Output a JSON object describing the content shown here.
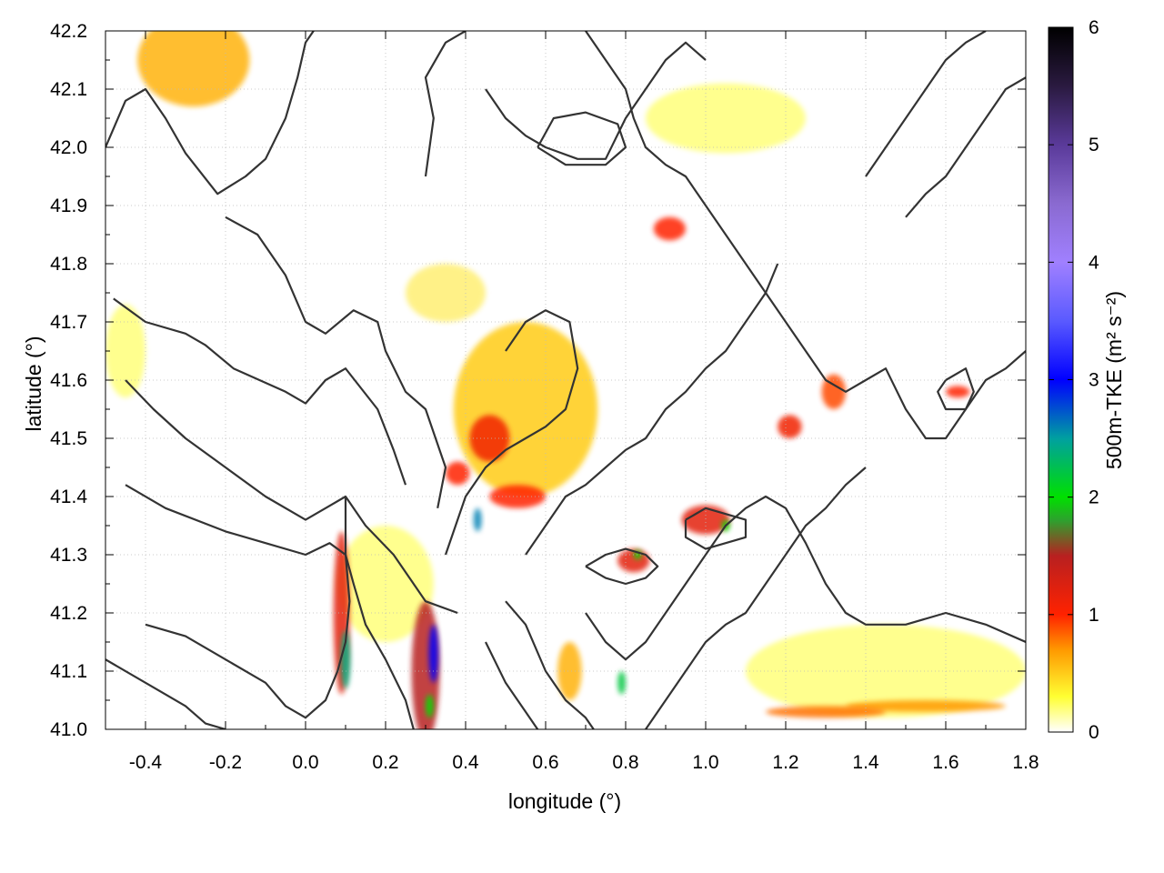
{
  "chart_data": {
    "type": "heatmap",
    "title": "",
    "xlabel": "longitude (°)",
    "ylabel": "latitude (°)",
    "colorbar_label": "500m-TKE (m² s⁻²)",
    "xlim": [
      -0.5,
      1.8
    ],
    "ylim": [
      41.0,
      42.2
    ],
    "clim": [
      0,
      6
    ],
    "x_ticks": [
      -0.4,
      -0.2,
      0.0,
      0.2,
      0.4,
      0.6,
      0.8,
      1.0,
      1.2,
      1.4,
      1.6,
      1.8
    ],
    "x_tick_labels": [
      "-0.4",
      "-0.2",
      "0.0",
      "0.2",
      "0.4",
      "0.6",
      "0.8",
      "1.0",
      "1.2",
      "1.4",
      "1.6",
      "1.8"
    ],
    "y_ticks": [
      41.0,
      41.1,
      41.2,
      41.3,
      41.4,
      41.5,
      41.6,
      41.7,
      41.8,
      41.9,
      42.0,
      42.1,
      42.2
    ],
    "y_tick_labels": [
      "41.0",
      "41.1",
      "41.2",
      "41.3",
      "41.4",
      "41.5",
      "41.6",
      "41.7",
      "41.8",
      "41.9",
      "42.0",
      "42.1",
      "42.2"
    ],
    "colorbar_ticks": [
      0,
      1,
      2,
      3,
      4,
      5,
      6
    ],
    "colorbar_tick_labels": [
      "0",
      "1",
      "2",
      "3",
      "4",
      "5",
      "6"
    ],
    "colormap": [
      {
        "v": 0.0,
        "color": "#ffffff"
      },
      {
        "v": 0.3,
        "color": "#ffff33"
      },
      {
        "v": 0.7,
        "color": "#ff9900"
      },
      {
        "v": 1.0,
        "color": "#ff2200"
      },
      {
        "v": 1.5,
        "color": "#b82020"
      },
      {
        "v": 1.8,
        "color": "#2ea02e"
      },
      {
        "v": 2.0,
        "color": "#00e000"
      },
      {
        "v": 2.5,
        "color": "#00a0a0"
      },
      {
        "v": 3.0,
        "color": "#0000ff"
      },
      {
        "v": 3.5,
        "color": "#5a5aff"
      },
      {
        "v": 4.0,
        "color": "#a080ff"
      },
      {
        "v": 4.5,
        "color": "#8a6ad0"
      },
      {
        "v": 5.0,
        "color": "#5a3a9a"
      },
      {
        "v": 5.5,
        "color": "#2a1a40"
      },
      {
        "v": 6.0,
        "color": "#000000"
      }
    ],
    "grid": true,
    "tke_features": [
      {
        "lon": -0.28,
        "lat": 42.15,
        "value": 0.6,
        "rlon": 0.14,
        "rlat": 0.08
      },
      {
        "lon": 0.09,
        "lat": 41.2,
        "value": 1.2,
        "rlon": 0.02,
        "rlat": 0.14
      },
      {
        "lon": 0.1,
        "lat": 41.12,
        "value": 2.4,
        "rlon": 0.012,
        "rlat": 0.05
      },
      {
        "lon": 0.3,
        "lat": 41.1,
        "value": 1.5,
        "rlon": 0.035,
        "rlat": 0.12
      },
      {
        "lon": 0.32,
        "lat": 41.13,
        "value": 3.0,
        "rlon": 0.012,
        "rlat": 0.05
      },
      {
        "lon": 0.31,
        "lat": 41.04,
        "value": 2.0,
        "rlon": 0.01,
        "rlat": 0.02
      },
      {
        "lon": 0.43,
        "lat": 41.36,
        "value": 2.6,
        "rlon": 0.01,
        "rlat": 0.02
      },
      {
        "lon": 0.46,
        "lat": 41.5,
        "value": 1.1,
        "rlon": 0.05,
        "rlat": 0.04
      },
      {
        "lon": 0.53,
        "lat": 41.4,
        "value": 1.0,
        "rlon": 0.07,
        "rlat": 0.02
      },
      {
        "lon": 0.38,
        "lat": 41.44,
        "value": 1.0,
        "rlon": 0.03,
        "rlat": 0.02
      },
      {
        "lon": 0.55,
        "lat": 41.55,
        "value": 0.5,
        "rlon": 0.18,
        "rlat": 0.15
      },
      {
        "lon": 0.82,
        "lat": 41.29,
        "value": 1.2,
        "rlon": 0.04,
        "rlat": 0.02
      },
      {
        "lon": 0.83,
        "lat": 41.3,
        "value": 2.0,
        "rlon": 0.01,
        "rlat": 0.008
      },
      {
        "lon": 1.0,
        "lat": 41.36,
        "value": 1.2,
        "rlon": 0.06,
        "rlat": 0.025
      },
      {
        "lon": 1.05,
        "lat": 41.35,
        "value": 2.0,
        "rlon": 0.01,
        "rlat": 0.01
      },
      {
        "lon": 0.79,
        "lat": 41.08,
        "value": 2.2,
        "rlon": 0.01,
        "rlat": 0.02
      },
      {
        "lon": 0.91,
        "lat": 41.86,
        "value": 1.0,
        "rlon": 0.04,
        "rlat": 0.02
      },
      {
        "lon": 1.21,
        "lat": 41.52,
        "value": 1.1,
        "rlon": 0.03,
        "rlat": 0.02
      },
      {
        "lon": 1.32,
        "lat": 41.58,
        "value": 0.9,
        "rlon": 0.03,
        "rlat": 0.03
      },
      {
        "lon": 1.63,
        "lat": 41.58,
        "value": 1.0,
        "rlon": 0.03,
        "rlat": 0.01
      },
      {
        "lon": 1.3,
        "lat": 41.03,
        "value": 0.8,
        "rlon": 0.15,
        "rlat": 0.01
      },
      {
        "lon": 1.55,
        "lat": 41.04,
        "value": 0.7,
        "rlon": 0.2,
        "rlat": 0.01
      },
      {
        "lon": 1.45,
        "lat": 41.1,
        "value": 0.3,
        "rlon": 0.35,
        "rlat": 0.08
      },
      {
        "lon": 0.66,
        "lat": 41.1,
        "value": 0.6,
        "rlon": 0.03,
        "rlat": 0.05
      },
      {
        "lon": 0.35,
        "lat": 41.75,
        "value": 0.4,
        "rlon": 0.1,
        "rlat": 0.05
      },
      {
        "lon": 0.2,
        "lat": 41.25,
        "value": 0.3,
        "rlon": 0.12,
        "rlat": 0.1
      },
      {
        "lon": -0.45,
        "lat": 41.65,
        "value": 0.3,
        "rlon": 0.05,
        "rlat": 0.08
      },
      {
        "lon": 1.05,
        "lat": 42.05,
        "value": 0.3,
        "rlon": 0.2,
        "rlat": 0.06
      }
    ],
    "contours": [
      [
        [
          -0.5,
          42.0
        ],
        [
          -0.45,
          42.08
        ],
        [
          -0.4,
          42.1
        ],
        [
          -0.35,
          42.05
        ],
        [
          -0.3,
          41.99
        ],
        [
          -0.22,
          41.92
        ],
        [
          -0.15,
          41.95
        ],
        [
          -0.1,
          41.98
        ],
        [
          -0.05,
          42.05
        ],
        [
          -0.02,
          42.12
        ],
        [
          0.0,
          42.18
        ],
        [
          0.02,
          42.2
        ]
      ],
      [
        [
          -0.2,
          41.88
        ],
        [
          -0.12,
          41.85
        ],
        [
          -0.05,
          41.78
        ],
        [
          0.0,
          41.7
        ],
        [
          0.05,
          41.68
        ],
        [
          0.12,
          41.72
        ],
        [
          0.18,
          41.7
        ],
        [
          0.2,
          41.65
        ],
        [
          0.25,
          41.58
        ],
        [
          0.3,
          41.55
        ],
        [
          0.35,
          41.45
        ],
        [
          0.33,
          41.38
        ]
      ],
      [
        [
          -0.48,
          41.74
        ],
        [
          -0.4,
          41.7
        ],
        [
          -0.3,
          41.68
        ],
        [
          -0.25,
          41.66
        ],
        [
          -0.18,
          41.62
        ],
        [
          -0.05,
          41.58
        ],
        [
          0.0,
          41.56
        ],
        [
          0.05,
          41.6
        ],
        [
          0.1,
          41.62
        ],
        [
          0.18,
          41.55
        ],
        [
          0.22,
          41.48
        ],
        [
          0.25,
          41.42
        ]
      ],
      [
        [
          -0.45,
          41.6
        ],
        [
          -0.38,
          41.55
        ],
        [
          -0.3,
          41.5
        ],
        [
          -0.2,
          41.45
        ],
        [
          -0.1,
          41.4
        ],
        [
          0.0,
          41.36
        ],
        [
          0.05,
          41.38
        ],
        [
          0.1,
          41.4
        ],
        [
          0.15,
          41.35
        ],
        [
          0.22,
          41.3
        ],
        [
          0.3,
          41.22
        ],
        [
          0.38,
          41.2
        ]
      ],
      [
        [
          -0.45,
          41.42
        ],
        [
          -0.35,
          41.38
        ],
        [
          -0.2,
          41.34
        ],
        [
          -0.1,
          41.32
        ],
        [
          0.0,
          41.3
        ],
        [
          0.06,
          41.32
        ],
        [
          0.1,
          41.3
        ],
        [
          0.12,
          41.25
        ],
        [
          0.15,
          41.18
        ],
        [
          0.2,
          41.12
        ],
        [
          0.25,
          41.05
        ],
        [
          0.27,
          41.0
        ]
      ],
      [
        [
          -0.4,
          41.18
        ],
        [
          -0.3,
          41.16
        ],
        [
          -0.2,
          41.12
        ],
        [
          -0.1,
          41.08
        ],
        [
          -0.05,
          41.04
        ],
        [
          0.0,
          41.02
        ],
        [
          0.05,
          41.05
        ],
        [
          0.08,
          41.1
        ],
        [
          0.1,
          41.15
        ],
        [
          0.11,
          41.22
        ],
        [
          0.1,
          41.3
        ],
        [
          0.1,
          41.4
        ]
      ],
      [
        [
          -0.5,
          41.12
        ],
        [
          -0.4,
          41.08
        ],
        [
          -0.3,
          41.04
        ],
        [
          -0.25,
          41.01
        ],
        [
          -0.2,
          41.0
        ]
      ],
      [
        [
          0.3,
          41.95
        ],
        [
          0.32,
          42.05
        ],
        [
          0.3,
          42.12
        ],
        [
          0.35,
          42.18
        ],
        [
          0.4,
          42.2
        ]
      ],
      [
        [
          0.45,
          42.1
        ],
        [
          0.5,
          42.05
        ],
        [
          0.55,
          42.02
        ],
        [
          0.6,
          42.0
        ],
        [
          0.68,
          41.98
        ],
        [
          0.75,
          41.98
        ],
        [
          0.8,
          42.05
        ],
        [
          0.85,
          42.1
        ],
        [
          0.9,
          42.15
        ],
        [
          0.95,
          42.18
        ],
        [
          1.0,
          42.15
        ]
      ],
      [
        [
          0.7,
          42.2
        ],
        [
          0.75,
          42.15
        ],
        [
          0.8,
          42.1
        ],
        [
          0.82,
          42.05
        ],
        [
          0.85,
          42.0
        ],
        [
          0.9,
          41.97
        ],
        [
          0.95,
          41.95
        ],
        [
          1.0,
          41.9
        ],
        [
          1.05,
          41.85
        ],
        [
          1.1,
          41.8
        ],
        [
          1.15,
          41.75
        ],
        [
          1.2,
          41.7
        ],
        [
          1.25,
          41.65
        ],
        [
          1.3,
          41.6
        ],
        [
          1.35,
          41.58
        ],
        [
          1.4,
          41.6
        ],
        [
          1.45,
          41.62
        ],
        [
          1.5,
          41.55
        ],
        [
          1.55,
          41.5
        ],
        [
          1.6,
          41.5
        ],
        [
          1.65,
          41.55
        ],
        [
          1.7,
          41.6
        ],
        [
          1.75,
          41.62
        ],
        [
          1.8,
          41.65
        ]
      ],
      [
        [
          0.55,
          41.3
        ],
        [
          0.6,
          41.35
        ],
        [
          0.65,
          41.4
        ],
        [
          0.7,
          41.42
        ],
        [
          0.75,
          41.45
        ],
        [
          0.8,
          41.48
        ],
        [
          0.85,
          41.5
        ],
        [
          0.9,
          41.55
        ],
        [
          0.95,
          41.58
        ],
        [
          1.0,
          41.62
        ],
        [
          1.05,
          41.65
        ],
        [
          1.1,
          41.7
        ],
        [
          1.15,
          41.75
        ],
        [
          1.18,
          41.8
        ]
      ],
      [
        [
          0.35,
          41.3
        ],
        [
          0.4,
          41.4
        ],
        [
          0.45,
          41.45
        ],
        [
          0.5,
          41.48
        ],
        [
          0.55,
          41.5
        ],
        [
          0.6,
          41.52
        ],
        [
          0.65,
          41.55
        ],
        [
          0.68,
          41.62
        ],
        [
          0.66,
          41.7
        ],
        [
          0.6,
          41.72
        ],
        [
          0.55,
          41.7
        ],
        [
          0.5,
          41.65
        ]
      ],
      [
        [
          0.5,
          41.22
        ],
        [
          0.55,
          41.18
        ],
        [
          0.6,
          41.1
        ],
        [
          0.65,
          41.05
        ],
        [
          0.7,
          41.02
        ],
        [
          0.72,
          41.0
        ]
      ],
      [
        [
          0.45,
          41.15
        ],
        [
          0.5,
          41.08
        ],
        [
          0.55,
          41.03
        ],
        [
          0.58,
          41.0
        ]
      ],
      [
        [
          0.7,
          41.2
        ],
        [
          0.75,
          41.15
        ],
        [
          0.8,
          41.12
        ],
        [
          0.85,
          41.15
        ],
        [
          0.9,
          41.2
        ],
        [
          0.95,
          41.25
        ],
        [
          1.0,
          41.3
        ],
        [
          1.05,
          41.35
        ],
        [
          1.1,
          41.38
        ],
        [
          1.15,
          41.4
        ],
        [
          1.2,
          41.38
        ],
        [
          1.25,
          41.32
        ],
        [
          1.3,
          41.25
        ],
        [
          1.35,
          41.2
        ],
        [
          1.4,
          41.18
        ],
        [
          1.5,
          41.18
        ],
        [
          1.6,
          41.2
        ],
        [
          1.7,
          41.18
        ],
        [
          1.8,
          41.15
        ]
      ],
      [
        [
          0.85,
          41.0
        ],
        [
          0.9,
          41.05
        ],
        [
          0.95,
          41.1
        ],
        [
          1.0,
          41.15
        ],
        [
          1.05,
          41.18
        ],
        [
          1.1,
          41.2
        ],
        [
          1.15,
          41.25
        ],
        [
          1.2,
          41.3
        ],
        [
          1.25,
          41.35
        ],
        [
          1.3,
          41.38
        ],
        [
          1.35,
          41.42
        ],
        [
          1.4,
          41.45
        ]
      ],
      [
        [
          1.5,
          41.88
        ],
        [
          1.55,
          41.92
        ],
        [
          1.6,
          41.95
        ],
        [
          1.65,
          42.0
        ],
        [
          1.7,
          42.05
        ],
        [
          1.75,
          42.1
        ],
        [
          1.8,
          42.12
        ]
      ],
      [
        [
          1.4,
          41.95
        ],
        [
          1.45,
          42.0
        ],
        [
          1.5,
          42.05
        ],
        [
          1.55,
          42.1
        ],
        [
          1.6,
          42.15
        ],
        [
          1.65,
          42.18
        ],
        [
          1.7,
          42.2
        ]
      ],
      [
        [
          0.7,
          41.28
        ],
        [
          0.75,
          41.3
        ],
        [
          0.8,
          41.31
        ],
        [
          0.85,
          41.3
        ],
        [
          0.88,
          41.28
        ],
        [
          0.85,
          41.26
        ],
        [
          0.8,
          41.25
        ],
        [
          0.75,
          41.26
        ],
        [
          0.7,
          41.28
        ]
      ],
      [
        [
          1.6,
          41.6
        ],
        [
          1.65,
          41.62
        ],
        [
          1.67,
          41.58
        ],
        [
          1.65,
          41.55
        ],
        [
          1.6,
          41.55
        ],
        [
          1.58,
          41.58
        ],
        [
          1.6,
          41.6
        ]
      ],
      [
        [
          0.95,
          41.36
        ],
        [
          1.0,
          41.38
        ],
        [
          1.05,
          41.37
        ],
        [
          1.1,
          41.36
        ],
        [
          1.1,
          41.33
        ],
        [
          1.05,
          41.32
        ],
        [
          1.0,
          41.31
        ],
        [
          0.95,
          41.33
        ],
        [
          0.95,
          41.36
        ]
      ],
      [
        [
          0.58,
          42.0
        ],
        [
          0.62,
          42.05
        ],
        [
          0.7,
          42.06
        ],
        [
          0.78,
          42.04
        ],
        [
          0.8,
          42.0
        ],
        [
          0.75,
          41.97
        ],
        [
          0.65,
          41.97
        ],
        [
          0.58,
          42.0
        ]
      ]
    ]
  }
}
